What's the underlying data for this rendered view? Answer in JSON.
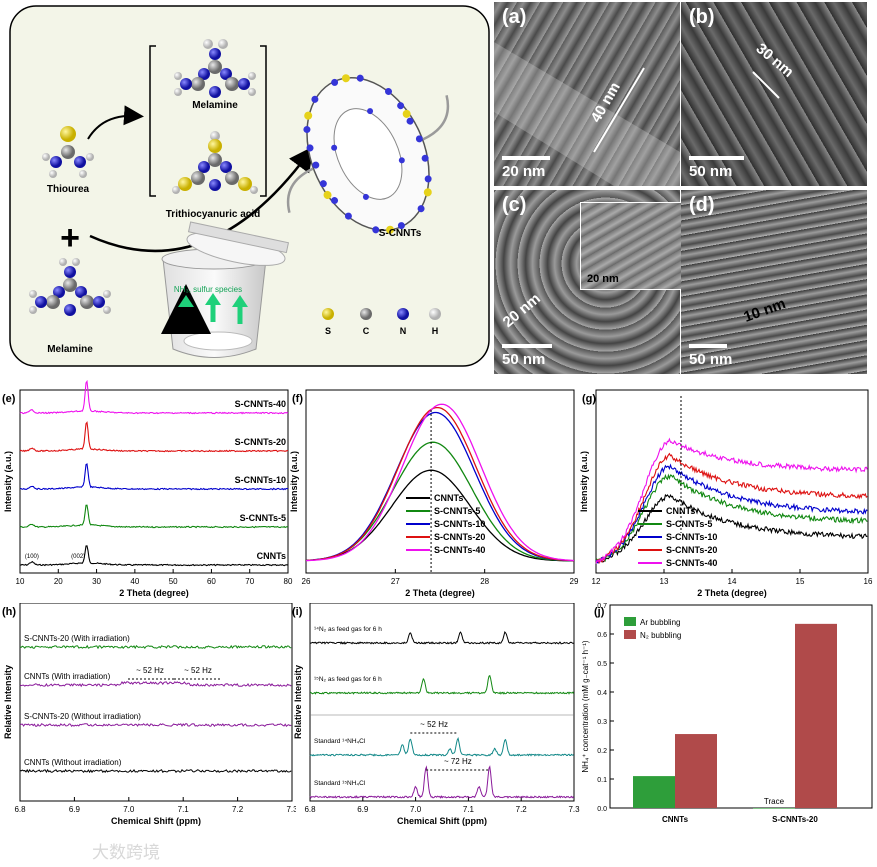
{
  "scheme": {
    "melamine_top": "Melamine",
    "trithiocyanuric": "Trithiocyanuric acid",
    "thiourea": "Thiourea",
    "melamine_bottom": "Melamine",
    "product": "S-CNNTs",
    "gas": "NH₃, sulfur species",
    "plus": "+",
    "legend": [
      {
        "sym": "S",
        "color": "#e8d21a"
      },
      {
        "sym": "C",
        "color": "#8a8a8a"
      },
      {
        "sym": "N",
        "color": "#2a2ad0"
      },
      {
        "sym": "H",
        "color": "#e6e6e6"
      }
    ]
  },
  "tem": {
    "a": {
      "label": "(a)",
      "scale": "20 nm",
      "measure": "40 nm"
    },
    "b": {
      "label": "(b)",
      "scale": "50 nm",
      "measure": "30 nm"
    },
    "c": {
      "label": "(c)",
      "scale": "50 nm",
      "measure": "20 nm",
      "inset_scale": "20 nm"
    },
    "d": {
      "label": "(d)",
      "scale": "50 nm",
      "measure": "10 nm"
    }
  },
  "chart_data": [
    {
      "panel": "(e)",
      "type": "line",
      "xlabel": "2 Theta (degree)",
      "ylabel": "Intensity (a.u.)",
      "xlim": [
        10,
        80
      ],
      "xticks": [
        10,
        20,
        30,
        40,
        50,
        60,
        70,
        80
      ],
      "series": [
        {
          "name": "CNNTs",
          "color": "#000000",
          "offset": 0
        },
        {
          "name": "S-CNNTs-5",
          "color": "#118811",
          "offset": 1
        },
        {
          "name": "S-CNNTs-10",
          "color": "#0000cc",
          "offset": 2
        },
        {
          "name": "S-CNNTs-20",
          "color": "#dd1111",
          "offset": 3
        },
        {
          "name": "S-CNNTs-40",
          "color": "#ee11ee",
          "offset": 4
        }
      ],
      "peaks": [
        {
          "x": 13.1,
          "label": "(100)"
        },
        {
          "x": 27.4,
          "label": "(002)"
        }
      ]
    },
    {
      "panel": "(f)",
      "type": "line",
      "xlabel": "2 Theta (degree)",
      "ylabel": "Intensity (a.u.)",
      "xlim": [
        26,
        29
      ],
      "xticks": [
        26,
        27,
        28,
        29
      ],
      "dashed_x": 27.4,
      "series": [
        {
          "name": "CNNTs",
          "color": "#000000",
          "peak": 27.4,
          "height": 0.55
        },
        {
          "name": "S-CNNTs-5",
          "color": "#118811",
          "peak": 27.42,
          "height": 0.72
        },
        {
          "name": "S-CNNTs-10",
          "color": "#0000cc",
          "peak": 27.45,
          "height": 0.9
        },
        {
          "name": "S-CNNTs-20",
          "color": "#dd1111",
          "peak": 27.47,
          "height": 0.93
        },
        {
          "name": "S-CNNTs-40",
          "color": "#ee11ee",
          "peak": 27.52,
          "height": 0.95
        }
      ]
    },
    {
      "panel": "(g)",
      "type": "line",
      "xlabel": "2 Theta (degree)",
      "ylabel": "Intensity (a.u.)",
      "xlim": [
        12,
        16
      ],
      "xticks": [
        12,
        13,
        14,
        15,
        16
      ],
      "dashed_x": 13.25,
      "series": [
        {
          "name": "CNNTs",
          "color": "#000000"
        },
        {
          "name": "S-CNNTs-5",
          "color": "#118811"
        },
        {
          "name": "S-CNNTs-10",
          "color": "#0000cc"
        },
        {
          "name": "S-CNNTs-20",
          "color": "#dd1111"
        },
        {
          "name": "S-CNNTs-40",
          "color": "#ee11ee"
        }
      ]
    },
    {
      "panel": "(h)",
      "type": "line",
      "xlabel": "Chemical Shift (ppm)",
      "ylabel": "Relative Intensity",
      "xlim": [
        6.8,
        7.3
      ],
      "xticks": [
        "6.8",
        "6.9",
        "7.0",
        "7.1",
        "7.2",
        "7.3"
      ],
      "series": [
        {
          "name": "S-CNNTs-20 (With irradiation)",
          "color": "#118811"
        },
        {
          "name": "CNNTs (With irradiation)",
          "color": "#8a1a9a"
        },
        {
          "name": "S-CNNTs-20 (Without irradiation)",
          "color": "#8a1a9a"
        },
        {
          "name": "CNNTs (Without irradiation)",
          "color": "#000000"
        }
      ],
      "annotations": [
        "~ 52 Hz",
        "~ 52 Hz"
      ]
    },
    {
      "panel": "(i)",
      "type": "line",
      "xlabel": "Chemical Shift (ppm)",
      "ylabel": "Relative Intensity",
      "xlim": [
        6.8,
        7.3
      ],
      "xticks": [
        "6.8",
        "6.9",
        "7.0",
        "7.1",
        "7.2",
        "7.3"
      ],
      "series": [
        {
          "name": "14N2 as feed gas for 6 h",
          "color": "#000000"
        },
        {
          "name": "15N2 as feed gas for 6 h",
          "color": "#118811"
        },
        {
          "name": "Standard 14NH4Cl",
          "color": "#118888"
        },
        {
          "name": "Standard 15NH4Cl",
          "color": "#8a1a9a"
        }
      ],
      "annotations": [
        "~ 52 Hz",
        "~ 72 Hz"
      ]
    },
    {
      "panel": "(j)",
      "type": "bar",
      "ylabel": "NH4+ concentration (mM gcat-1 h-1)",
      "categories": [
        "CNNTs",
        "S-CNNTs-20"
      ],
      "series": [
        {
          "name": "Ar bubbling",
          "color": "#2e9e3a",
          "values": [
            0.11,
            0.0
          ]
        },
        {
          "name": "N2 bubbling",
          "color": "#b04a4a",
          "values": [
            0.255,
            0.635
          ]
        }
      ],
      "ylim": [
        0,
        0.7
      ],
      "yticks": [
        "0.0",
        "0.1",
        "0.2",
        "0.3",
        "0.4",
        "0.5",
        "0.6",
        "0.7"
      ],
      "annotation": "Trace"
    }
  ],
  "labels": {
    "e_peak1": "(100)",
    "e_peak2": "(002)",
    "h_ann1": "~ 52 Hz",
    "h_ann2": "~ 52 Hz",
    "i_ann1": "~ 52 Hz",
    "i_ann2": "~ 72 Hz",
    "i_l1": "¹⁴N₂ as feed gas for 6 h",
    "i_l2": "¹⁵N₂ as feed gas for 6 h",
    "i_l3": "Standard ¹⁴NH₄Cl",
    "i_l4": "Standard ¹⁵NH₄Cl",
    "j_trace": "Trace",
    "j_ylabel": "NH₄⁺ concentration (mM g₋cat⁻¹ h⁻¹)",
    "j_leg1": "Ar bubbling",
    "j_leg2": "N₂ bubbling"
  },
  "watermark": "大数跨境"
}
